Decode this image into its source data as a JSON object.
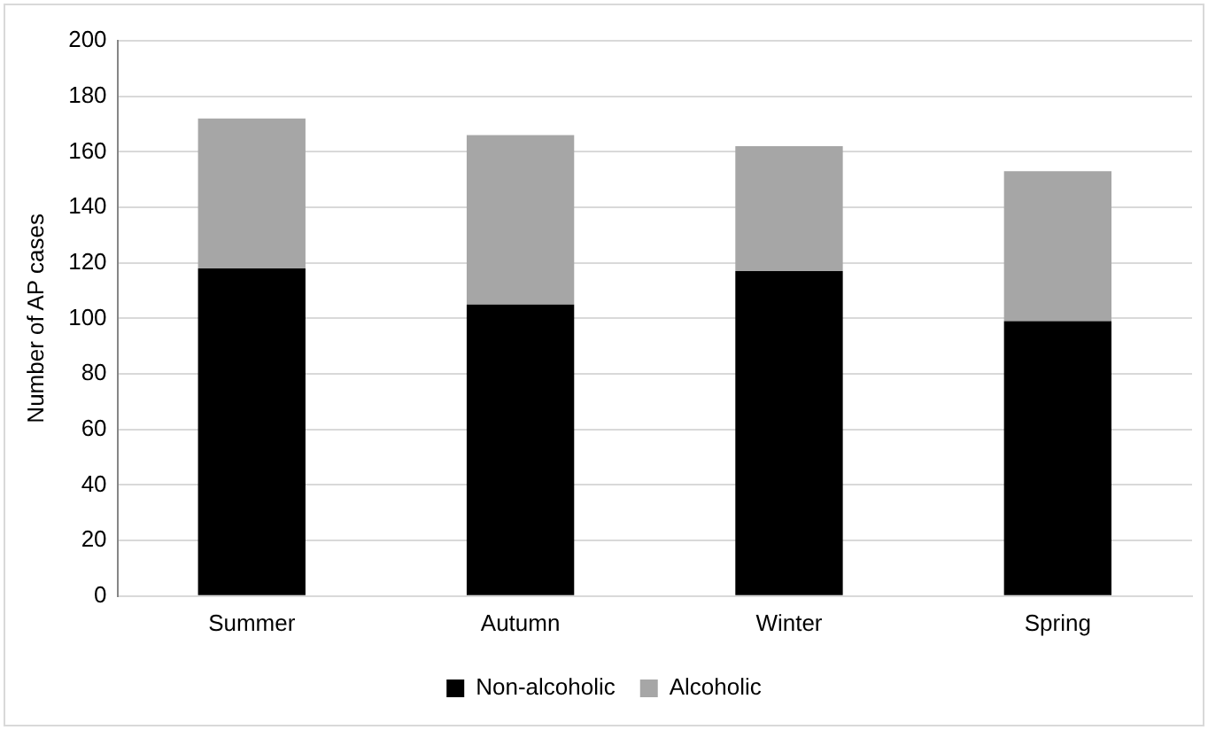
{
  "chart_data": {
    "type": "bar",
    "ylabel": "Number of AP cases",
    "categories": [
      "Summer",
      "Autumn",
      "Winter",
      "Spring"
    ],
    "stacked": true,
    "series": [
      {
        "name": "Non-alcoholic",
        "color": "#000000",
        "values": [
          118,
          105,
          117,
          99
        ]
      },
      {
        "name": "Alcoholic",
        "color": "#a6a6a6",
        "values": [
          54,
          61,
          45,
          54
        ]
      }
    ],
    "ylim": [
      0,
      200
    ],
    "yticks": [
      0,
      20,
      40,
      60,
      80,
      100,
      120,
      140,
      160,
      180,
      200
    ],
    "grid": "y",
    "legend": "bottom"
  }
}
